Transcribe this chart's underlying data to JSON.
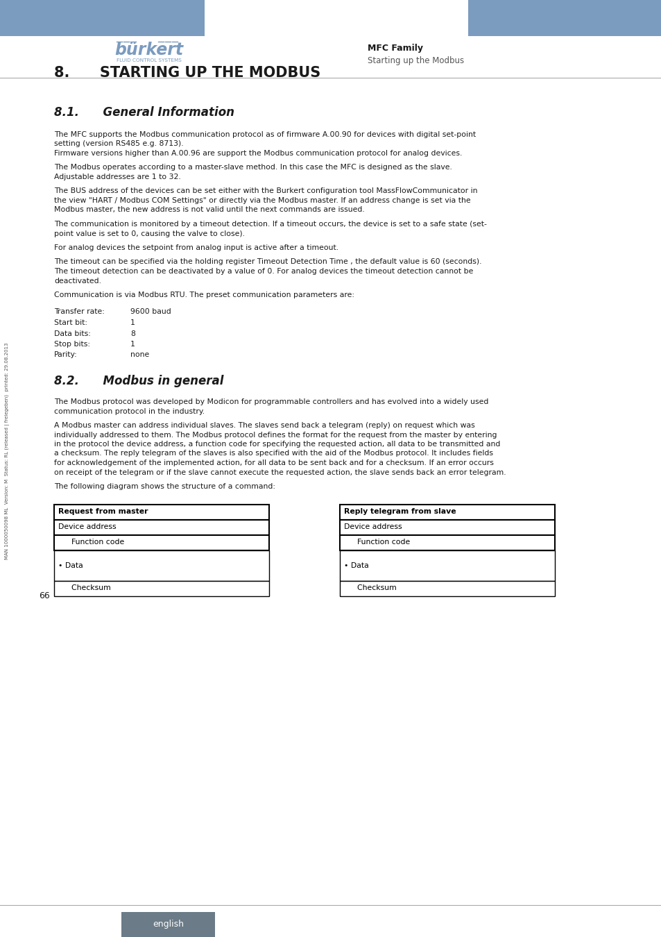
{
  "header_blue": "#7b9bbf",
  "page_bg": "#ffffff",
  "burkert_text": "burkert",
  "burkert_subtitle": "FLUID CONTROL SYSTEMS",
  "mfc_family": "MFC Family",
  "starting_up": "Starting up the Modbus",
  "section_title": "8.      STARTING UP THE MODBUS",
  "section_81_title": "8.1.      General Information",
  "section_81_paragraphs": [
    "The MFC supports the Modbus communication protocol as of firmware A.00.90 for devices with digital set-point\nsetting (version RS485 e.g. 8713).\nFirmware versions higher than A.00.96 are support the Modbus communication protocol for analog devices.",
    "The Modbus operates according to a master-slave method. In this case the MFC is designed as the slave.\nAdjustable addresses are 1 to 32.",
    "The BUS address of the devices can be set either with the Burkert configuration tool MassFlowCommunicator in\nthe view \"HART / Modbus COM Settings\" or directly via the Modbus master. If an address change is set via the\nModbus master, the new address is not valid until the next commands are issued.",
    "The communication is monitored by a timeout detection. If a timeout occurs, the device is set to a safe state (set-\npoint value is set to 0, causing the valve to close).",
    "For analog devices the setpoint from analog input is active after a timeout.",
    "The timeout can be specified via the holding register Timeout Detection Time , the default value is 60 (seconds).\nThe timeout detection can be deactivated by a value of 0. For analog devices the timeout detection cannot be\ndeactivated.",
    "Communication is via Modbus RTU. The preset communication parameters are:"
  ],
  "comm_params": [
    [
      "Transfer rate:",
      "9600 baud"
    ],
    [
      "Start bit:",
      "1"
    ],
    [
      "Data bits:",
      "8"
    ],
    [
      "Stop bits:",
      "1"
    ],
    [
      "Parity:",
      "none"
    ]
  ],
  "section_82_title": "8.2.      Modbus in general",
  "section_82_paragraphs": [
    "The Modbus protocol was developed by Modicon for programmable controllers and has evolved into a widely used\ncommunication protocol in the industry.",
    "A Modbus master can address individual slaves. The slaves send back a telegram (reply) on request which was\nindividually addressed to them. The Modbus protocol defines the format for the request from the master by entering\nin the protocol the device address, a function code for specifying the requested action, all data to be transmitted and\na checksum. The reply telegram of the slaves is also specified with the aid of the Modbus protocol. It includes fields\nfor acknowledgement of the implemented action, for all data to be sent back and for a checksum. If an error occurs\non receipt of the telegram or if the slave cannot execute the requested action, the slave sends back an error telegram.",
    "The following diagram shows the structure of a command:"
  ],
  "diagram_left_title": "Request from master",
  "diagram_left_rows": [
    "Device address",
    "  Function code",
    "• Data",
    "  Checksum"
  ],
  "diagram_right_title": "Reply telegram from slave",
  "diagram_right_rows": [
    "Device address",
    "  Function code",
    "• Data",
    "  Checksum"
  ],
  "page_number": "66",
  "footer_text": "english",
  "footer_bg": "#6b7b87",
  "sidebar_text": "MAN 1000050098 ML  Version: M  Status: RL (released | freiegeben)  printed: 29.08.2013",
  "text_color": "#1a1a1a"
}
